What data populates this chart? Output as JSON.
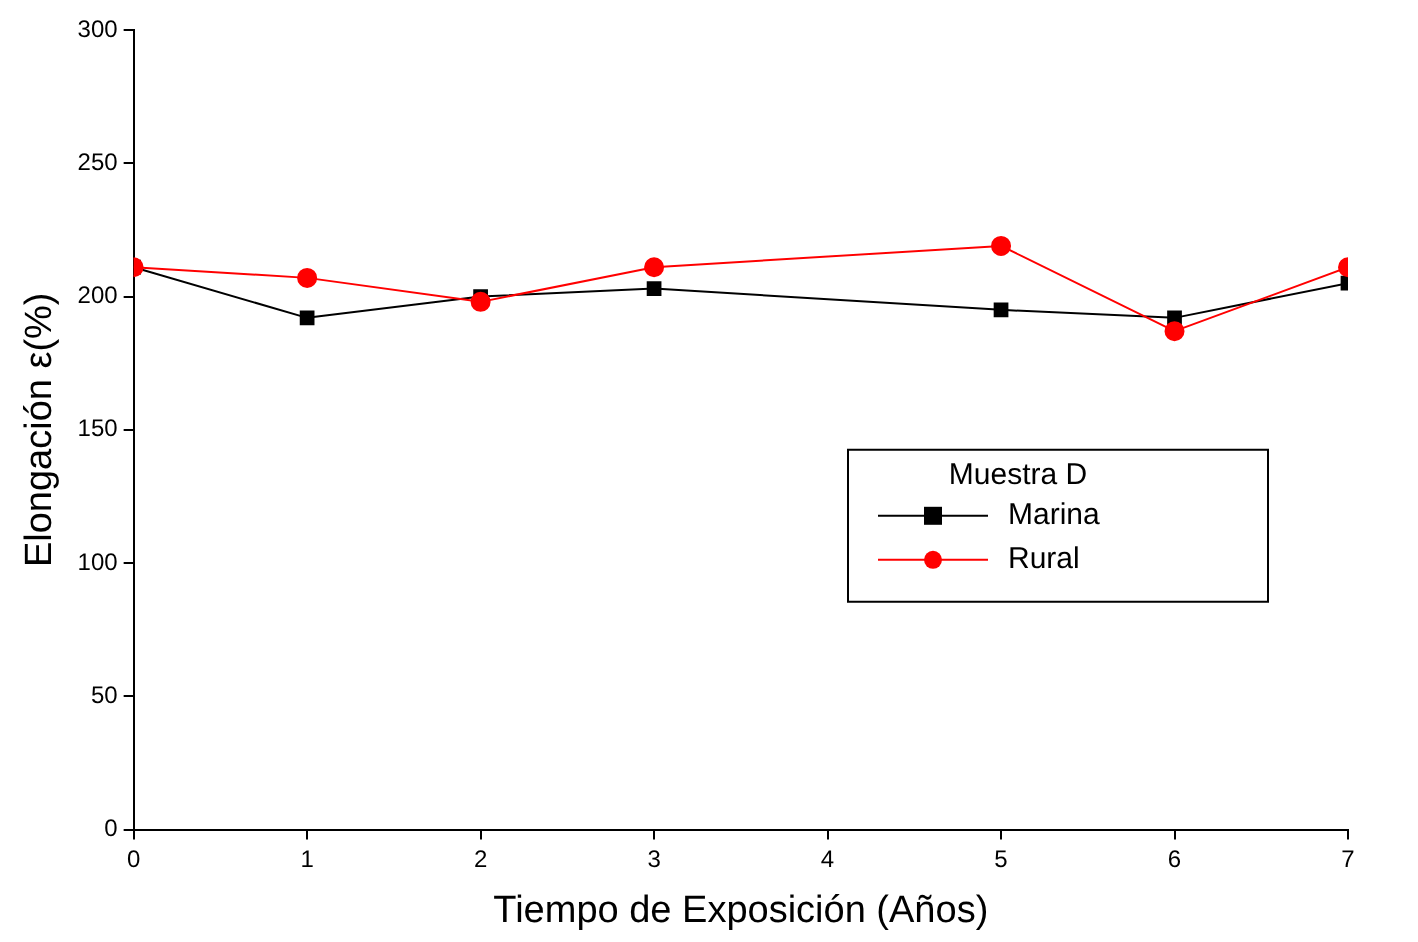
{
  "chart_data": {
    "type": "line",
    "xlabel": "Tiempo de Exposición (Años)",
    "ylabel": "Elongación ε(%)",
    "legend_title": "Muestra D",
    "x": [
      0,
      1,
      2,
      3,
      5,
      6,
      7
    ],
    "series": [
      {
        "name": "Marina",
        "color": "#000000",
        "marker": "square",
        "values": [
          211,
          192,
          200,
          203,
          195,
          192,
          205
        ]
      },
      {
        "name": "Rural",
        "color": "#ff0000",
        "marker": "circle",
        "values": [
          211,
          207,
          198,
          211,
          219,
          187,
          211
        ]
      }
    ],
    "xlim": [
      0,
      7
    ],
    "xticks": [
      0,
      1,
      2,
      3,
      4,
      5,
      6,
      7
    ],
    "ylim": [
      0,
      300
    ],
    "yticks": [
      0,
      50,
      100,
      150,
      200,
      250,
      300
    ],
    "grid": false,
    "legend": "right",
    "line_style": "solid"
  }
}
